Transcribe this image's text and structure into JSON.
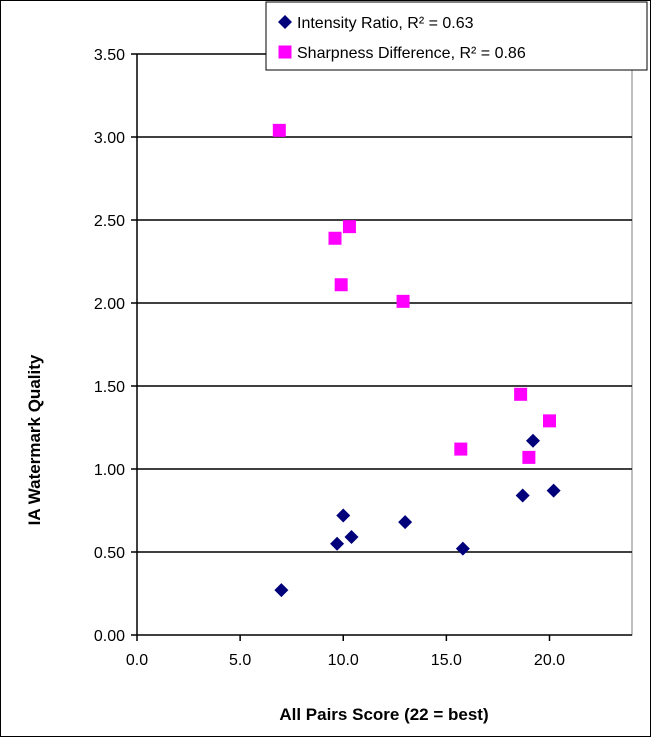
{
  "chart_data": {
    "type": "scatter",
    "xlabel": "All Pairs Score (22 = best)",
    "ylabel": "IA Watermark Quality",
    "xlim": [
      0,
      24
    ],
    "ylim": [
      0,
      3.5
    ],
    "x_ticks": [
      "0.0",
      "5.0",
      "10.0",
      "15.0",
      "20.0"
    ],
    "x_tick_values": [
      0,
      5,
      10,
      15,
      20
    ],
    "y_ticks": [
      "0.00",
      "0.50",
      "1.00",
      "1.50",
      "2.00",
      "2.50",
      "3.00",
      "3.50"
    ],
    "y_tick_values": [
      0,
      0.5,
      1.0,
      1.5,
      2.0,
      2.5,
      3.0,
      3.5
    ],
    "grid": "horizontal",
    "legend_position": "top-right",
    "series": [
      {
        "name": "Intensity Ratio, R² = 0.63",
        "marker": "diamond",
        "color": "#00007a",
        "points": [
          [
            7.0,
            0.27
          ],
          [
            9.7,
            0.55
          ],
          [
            10.0,
            0.72
          ],
          [
            10.4,
            0.59
          ],
          [
            13.0,
            0.68
          ],
          [
            15.8,
            0.52
          ],
          [
            18.7,
            0.84
          ],
          [
            19.2,
            1.17
          ],
          [
            20.2,
            0.87
          ]
        ]
      },
      {
        "name": "Sharpness Difference, R² = 0.86",
        "marker": "square",
        "color": "#ff00ff",
        "points": [
          [
            6.9,
            3.04
          ],
          [
            9.6,
            2.39
          ],
          [
            9.9,
            2.11
          ],
          [
            10.3,
            2.46
          ],
          [
            12.9,
            2.01
          ],
          [
            15.7,
            1.12
          ],
          [
            18.6,
            1.45
          ],
          [
            19.0,
            1.07
          ],
          [
            20.0,
            1.29
          ]
        ]
      }
    ]
  }
}
